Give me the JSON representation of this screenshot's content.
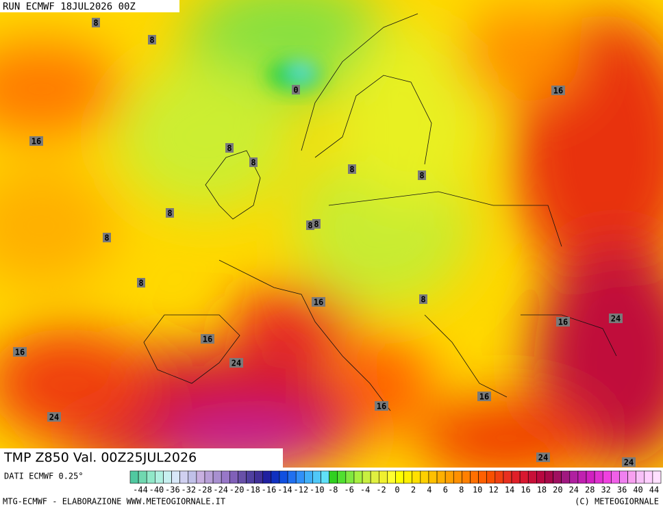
{
  "header": {
    "run": "RUN ECMWF 18JUL2026 00Z"
  },
  "panel": {
    "title": "TMP  Z850  Val. 00Z25JUL2026"
  },
  "contour_labels": [
    8,
    8,
    0,
    16,
    16,
    8,
    8,
    8,
    8,
    8,
    8,
    8,
    8,
    8,
    16,
    8,
    16,
    24,
    16,
    24,
    16,
    24,
    16,
    16,
    24,
    24
  ],
  "legend": {
    "source": "DATI ECMWF 0.25°",
    "ticks": [
      -44,
      -40,
      -36,
      -32,
      -28,
      -24,
      -20,
      -18,
      -16,
      -14,
      -12,
      -10,
      -8,
      -6,
      -4,
      -2,
      0,
      2,
      4,
      6,
      8,
      10,
      12,
      14,
      16,
      18,
      20,
      24,
      28,
      32,
      36,
      40,
      44
    ]
  },
  "footer": {
    "left": "MTG-ECMWF - ELABORAZIONE WWW.METEOGIORNALE.IT",
    "right": "(C) METEOGIORNALE"
  }
}
